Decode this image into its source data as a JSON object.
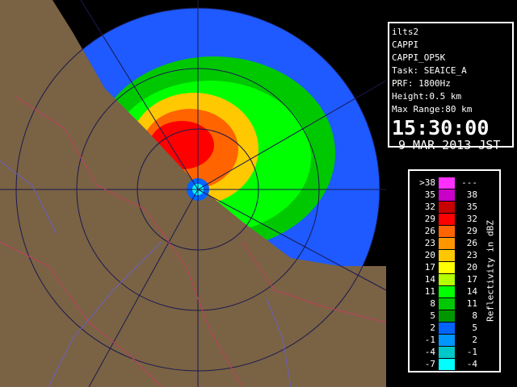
{
  "info": {
    "lines": [
      "ilts2",
      "CAPPI",
      "CAPPI_OP5K",
      "Task: SEAICE_A",
      "PRF: 1800Hz",
      "Height:0.5 km",
      "Max Range:80 km"
    ],
    "time": "15:30:00",
    "date": "9 MAR 2013 JST"
  },
  "legend": {
    "title": "Reflectivity in dBZ",
    "rows": [
      {
        "low": ">38",
        "high": "---",
        "color": "#ff30ff"
      },
      {
        "low": "35",
        "high": "38",
        "color": "#c800c8"
      },
      {
        "low": "32",
        "high": "35",
        "color": "#c80000"
      },
      {
        "low": "29",
        "high": "32",
        "color": "#ff0000"
      },
      {
        "low": "26",
        "high": "29",
        "color": "#ff6400"
      },
      {
        "low": "23",
        "high": "26",
        "color": "#ff9600"
      },
      {
        "low": "20",
        "high": "23",
        "color": "#ffc800"
      },
      {
        "low": "17",
        "high": "20",
        "color": "#ffff00"
      },
      {
        "low": "14",
        "high": "17",
        "color": "#b4ff00"
      },
      {
        "low": "11",
        "high": "14",
        "color": "#00ff00"
      },
      {
        "low": "8",
        "high": "11",
        "color": "#00c800"
      },
      {
        "low": "5",
        "high": "8",
        "color": "#009600"
      },
      {
        "low": "2",
        "high": "5",
        "color": "#0064ff"
      },
      {
        "low": "-1",
        "high": "2",
        "color": "#0096ff"
      },
      {
        "low": "-4",
        "high": "-1",
        "color": "#00c8c8"
      },
      {
        "low": "-7",
        "high": "-4",
        "color": "#00ffff"
      }
    ]
  }
}
